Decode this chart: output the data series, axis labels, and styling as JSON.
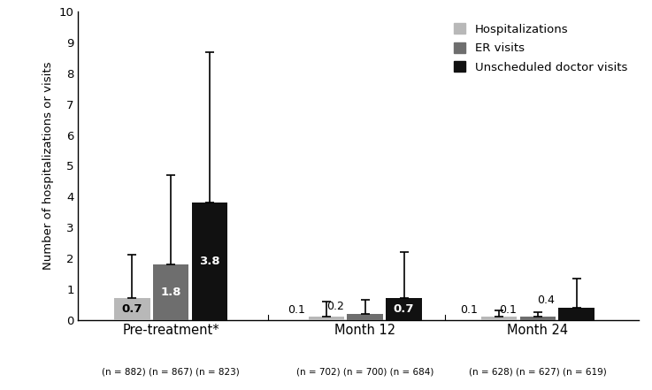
{
  "groups": [
    "Pre-treatment*",
    "Month 12",
    "Month 24"
  ],
  "group_labels": [
    "Pre-treatment*",
    "Month 12",
    "Month 24"
  ],
  "group_sublabels": [
    "(n = 882) (n = 867) (n = 823)",
    "(n = 702) (n = 700) (n = 684)",
    "(n = 628) (n = 627) (n = 619)"
  ],
  "categories": [
    "Hospitalizations",
    "ER visits",
    "Unscheduled doctor visits"
  ],
  "colors": [
    "#b8b8b8",
    "#6e6e6e",
    "#111111"
  ],
  "values": [
    [
      0.7,
      1.8,
      3.8
    ],
    [
      0.1,
      0.2,
      0.7
    ],
    [
      0.1,
      0.1,
      0.4
    ]
  ],
  "error_upper": [
    [
      2.1,
      4.7,
      8.7
    ],
    [
      0.6,
      0.65,
      2.2
    ],
    [
      0.3,
      0.25,
      1.35
    ]
  ],
  "bar_labels": [
    [
      "0.7",
      "1.8",
      "3.8"
    ],
    [
      "0.1",
      "0.2",
      "0.7"
    ],
    [
      "0.1",
      "0.1",
      "0.4"
    ]
  ],
  "label_colors": [
    [
      "black",
      "white",
      "white"
    ],
    [
      "black",
      "black",
      "white"
    ],
    [
      "black",
      "black",
      "black"
    ]
  ],
  "ylabel": "Number of hospitalizations or visits",
  "ylim": [
    0,
    10
  ],
  "yticks": [
    0,
    1,
    2,
    3,
    4,
    5,
    6,
    7,
    8,
    9,
    10
  ],
  "bar_width": 0.18,
  "background_color": "#ffffff"
}
